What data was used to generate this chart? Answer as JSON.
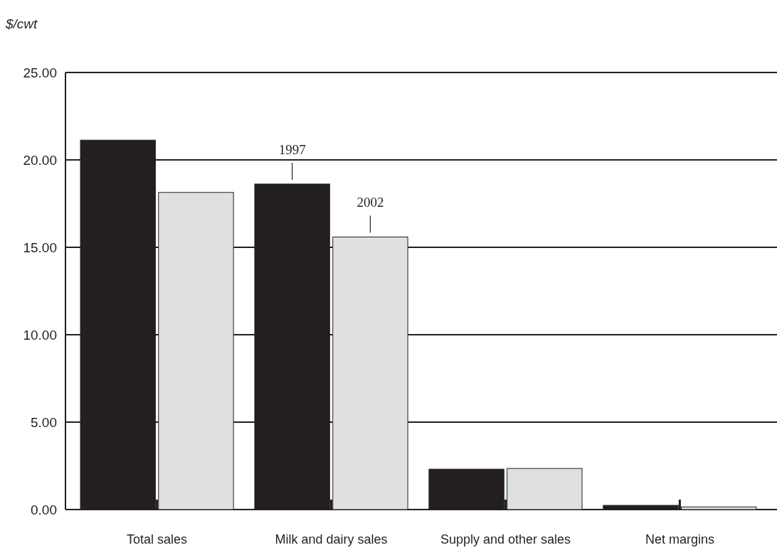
{
  "chart_data": {
    "type": "bar",
    "ylabel": "$/cwt",
    "categories": [
      "Total sales",
      "Milk and dairy sales",
      "Supply and other sales",
      "Net margins"
    ],
    "series": [
      {
        "name": "1997",
        "color": "#231f20",
        "values": [
          21.13,
          18.62,
          2.31,
          0.24
        ]
      },
      {
        "name": "2002",
        "color": "#dfe0e2",
        "values": [
          18.14,
          15.59,
          2.35,
          0.15
        ]
      }
    ],
    "ylim": [
      0,
      25
    ],
    "yticks": [
      {
        "value": 0,
        "label": "0.00"
      },
      {
        "value": 5,
        "label": "5.00"
      },
      {
        "value": 10,
        "label": "10.00"
      },
      {
        "value": 15,
        "label": "15.00"
      },
      {
        "value": 20,
        "label": "20.00"
      },
      {
        "value": 25,
        "label": "25.00"
      }
    ],
    "grid": "y"
  }
}
